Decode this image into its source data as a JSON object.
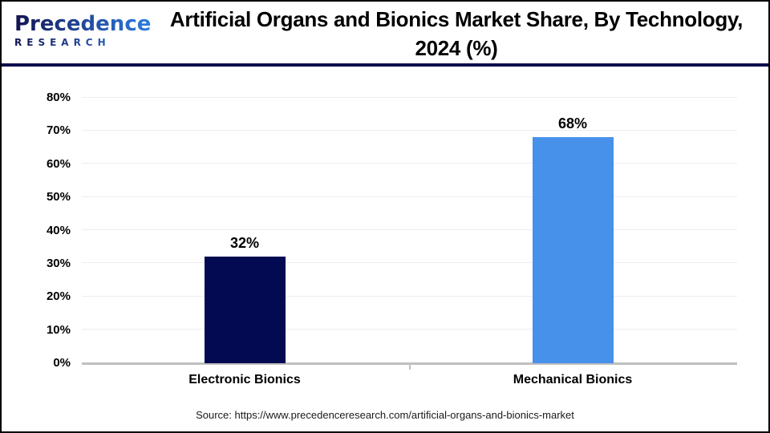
{
  "logo": {
    "name": "Precedence",
    "subtitle": "RESEARCH"
  },
  "title": {
    "line1": "Artificial Organs and Bionics Market Share, By Technology,",
    "line2": "2024 (%)"
  },
  "source": "Source: https://www.precedenceresearch.com/artificial-organs-and-bionics-market",
  "colors": {
    "header_divider": "#0d0d4d",
    "logo_gradient_start": "#141452",
    "logo_gradient_end": "#2e7ce0",
    "title_text": "#000000",
    "background": "#ffffff"
  },
  "chart_data": {
    "type": "bar",
    "title": "Artificial Organs and Bionics Market Share, By Technology, 2024 (%)",
    "categories": [
      "Electronic Bionics",
      "Mechanical Bionics"
    ],
    "values": [
      32,
      68
    ],
    "value_labels": [
      "32%",
      "68%"
    ],
    "bar_colors": [
      "#030a52",
      "#4791ea"
    ],
    "xlabel": "",
    "ylabel": "",
    "ylim": [
      0,
      80
    ],
    "ytick_step": 10,
    "yticks": [
      "0%",
      "10%",
      "20%",
      "30%",
      "40%",
      "50%",
      "60%",
      "70%",
      "80%"
    ],
    "grid": true,
    "grid_color": "#ededed",
    "axis_color": "#c0c0c0",
    "legend": "none"
  }
}
